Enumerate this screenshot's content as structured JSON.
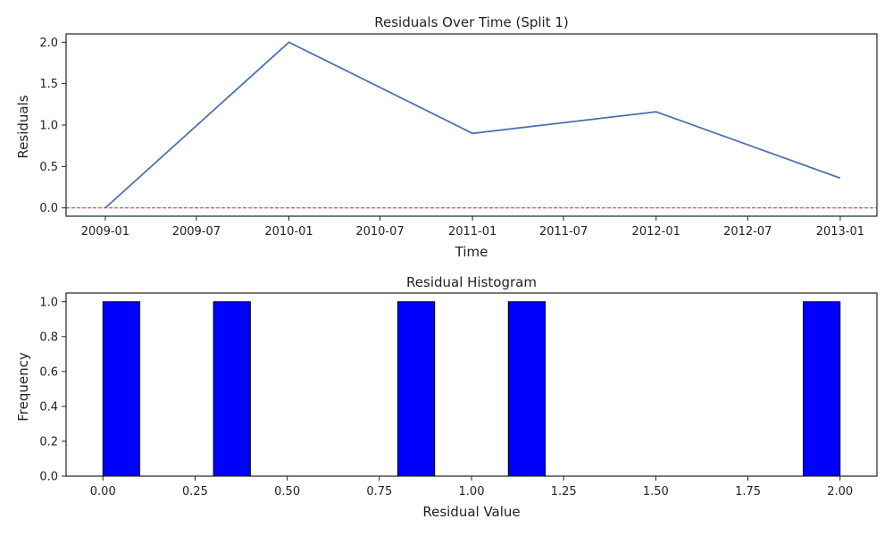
{
  "chart_data": [
    {
      "type": "line",
      "title": "Residuals Over Time (Split 1)",
      "xlabel": "Time",
      "ylabel": "Residuals",
      "x_ticks": [
        "2009-01",
        "2009-07",
        "2010-01",
        "2010-07",
        "2011-01",
        "2011-07",
        "2012-01",
        "2012-07",
        "2013-01"
      ],
      "y_ticks": [
        "0.0",
        "0.5",
        "1.0",
        "1.5",
        "2.0"
      ],
      "xlim": [
        "2008-10-15",
        "2013-03-15"
      ],
      "ylim": [
        -0.1,
        2.1
      ],
      "grid": false,
      "series": [
        {
          "color": "#4c72b0",
          "points": [
            {
              "x": "2009-01-01",
              "y": 0.0
            },
            {
              "x": "2010-01-01",
              "y": 2.0
            },
            {
              "x": "2011-01-01",
              "y": 0.9
            },
            {
              "x": "2012-01-01",
              "y": 1.16
            },
            {
              "x": "2013-01-01",
              "y": 0.36
            }
          ]
        }
      ],
      "reference_line": {
        "y": 0,
        "color": "#d62728",
        "style": "dashed"
      }
    },
    {
      "type": "bar",
      "title": "Residual Histogram",
      "xlabel": "Residual Value",
      "ylabel": "Frequency",
      "x_ticks": [
        "0.00",
        "0.25",
        "0.50",
        "0.75",
        "1.00",
        "1.25",
        "1.50",
        "1.75",
        "2.00"
      ],
      "y_ticks": [
        "0.0",
        "0.2",
        "0.4",
        "0.6",
        "0.8",
        "1.0"
      ],
      "xlim": [
        -0.1,
        2.1
      ],
      "ylim": [
        0,
        1.05
      ],
      "grid": false,
      "bar_color": "#0000ff",
      "edge_color": "#000000",
      "bins": [
        {
          "start": 0.0,
          "end": 0.1,
          "count": 1
        },
        {
          "start": 0.3,
          "end": 0.4,
          "count": 1
        },
        {
          "start": 0.8,
          "end": 0.9,
          "count": 1
        },
        {
          "start": 1.1,
          "end": 1.2,
          "count": 1
        },
        {
          "start": 1.9,
          "end": 2.0,
          "count": 1
        }
      ]
    }
  ]
}
